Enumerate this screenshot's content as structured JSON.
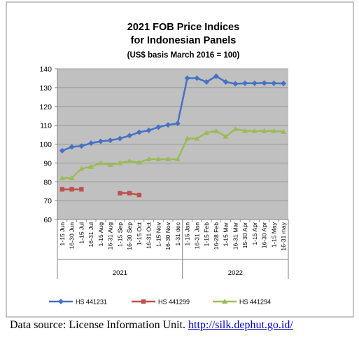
{
  "chart_data": {
    "type": "line",
    "title": [
      "2021 FOB Price Indices",
      "for Indonesian Panels",
      "(US$ basis March 2016 = 100)"
    ],
    "categories": [
      "1-15 Jun",
      "16-30 Jun",
      "1-15 Jul",
      "16-31 Jul",
      "1-15 Aug",
      "16-31 Aug",
      "1-15 Sep",
      "16-30 Sep",
      "1-15 Oct",
      "16-31 Oct",
      "1-15 Nov",
      "16-30 Nov",
      "1-31 dec",
      "1-15 Jan",
      "16-31 Jan",
      "1-15 Feb",
      "16-28 Feb",
      "1-15 Mar",
      "16-31 Mar",
      "15-30 Apr",
      "1-15 Apr",
      "16-30 Apr",
      "1-15 May",
      "16-31 may"
    ],
    "groups": [
      {
        "label": "2021",
        "start": 0,
        "end": 12
      },
      {
        "label": "2022",
        "start": 13,
        "end": 23
      }
    ],
    "series": [
      {
        "name": "HS 441231",
        "color": "#4472c4",
        "marker": "diamond",
        "values": [
          96.5,
          98.5,
          99,
          100.5,
          101.5,
          102,
          103,
          104.5,
          106.3,
          107.3,
          109,
          110.2,
          111,
          135,
          135,
          133,
          136,
          133,
          132,
          132.3,
          132.3,
          132.4,
          132.3,
          132.2
        ]
      },
      {
        "name": "HS 441299",
        "color": "#c0504d",
        "marker": "square",
        "values": [
          76,
          76,
          76,
          null,
          null,
          null,
          74,
          74,
          73,
          null,
          null,
          null,
          null,
          null,
          null,
          null,
          null,
          null,
          null,
          null,
          null,
          null,
          null,
          null
        ]
      },
      {
        "name": "HS 441294",
        "color": "#9bbb59",
        "marker": "triangle",
        "values": [
          82,
          82,
          87,
          88,
          90,
          89,
          90,
          91,
          90.3,
          92,
          92,
          92,
          92,
          103,
          103,
          106,
          107,
          104,
          108,
          107,
          107,
          107,
          107,
          106.5
        ]
      }
    ],
    "yticks": [
      60,
      70,
      80,
      90,
      100,
      110,
      120,
      130,
      140
    ],
    "ylim": [
      60,
      140
    ],
    "grid": true,
    "legend": "bottom"
  },
  "source": {
    "prefix": "Data source: License Information Unit. ",
    "link": "http://silk.dephut.go.id/"
  }
}
